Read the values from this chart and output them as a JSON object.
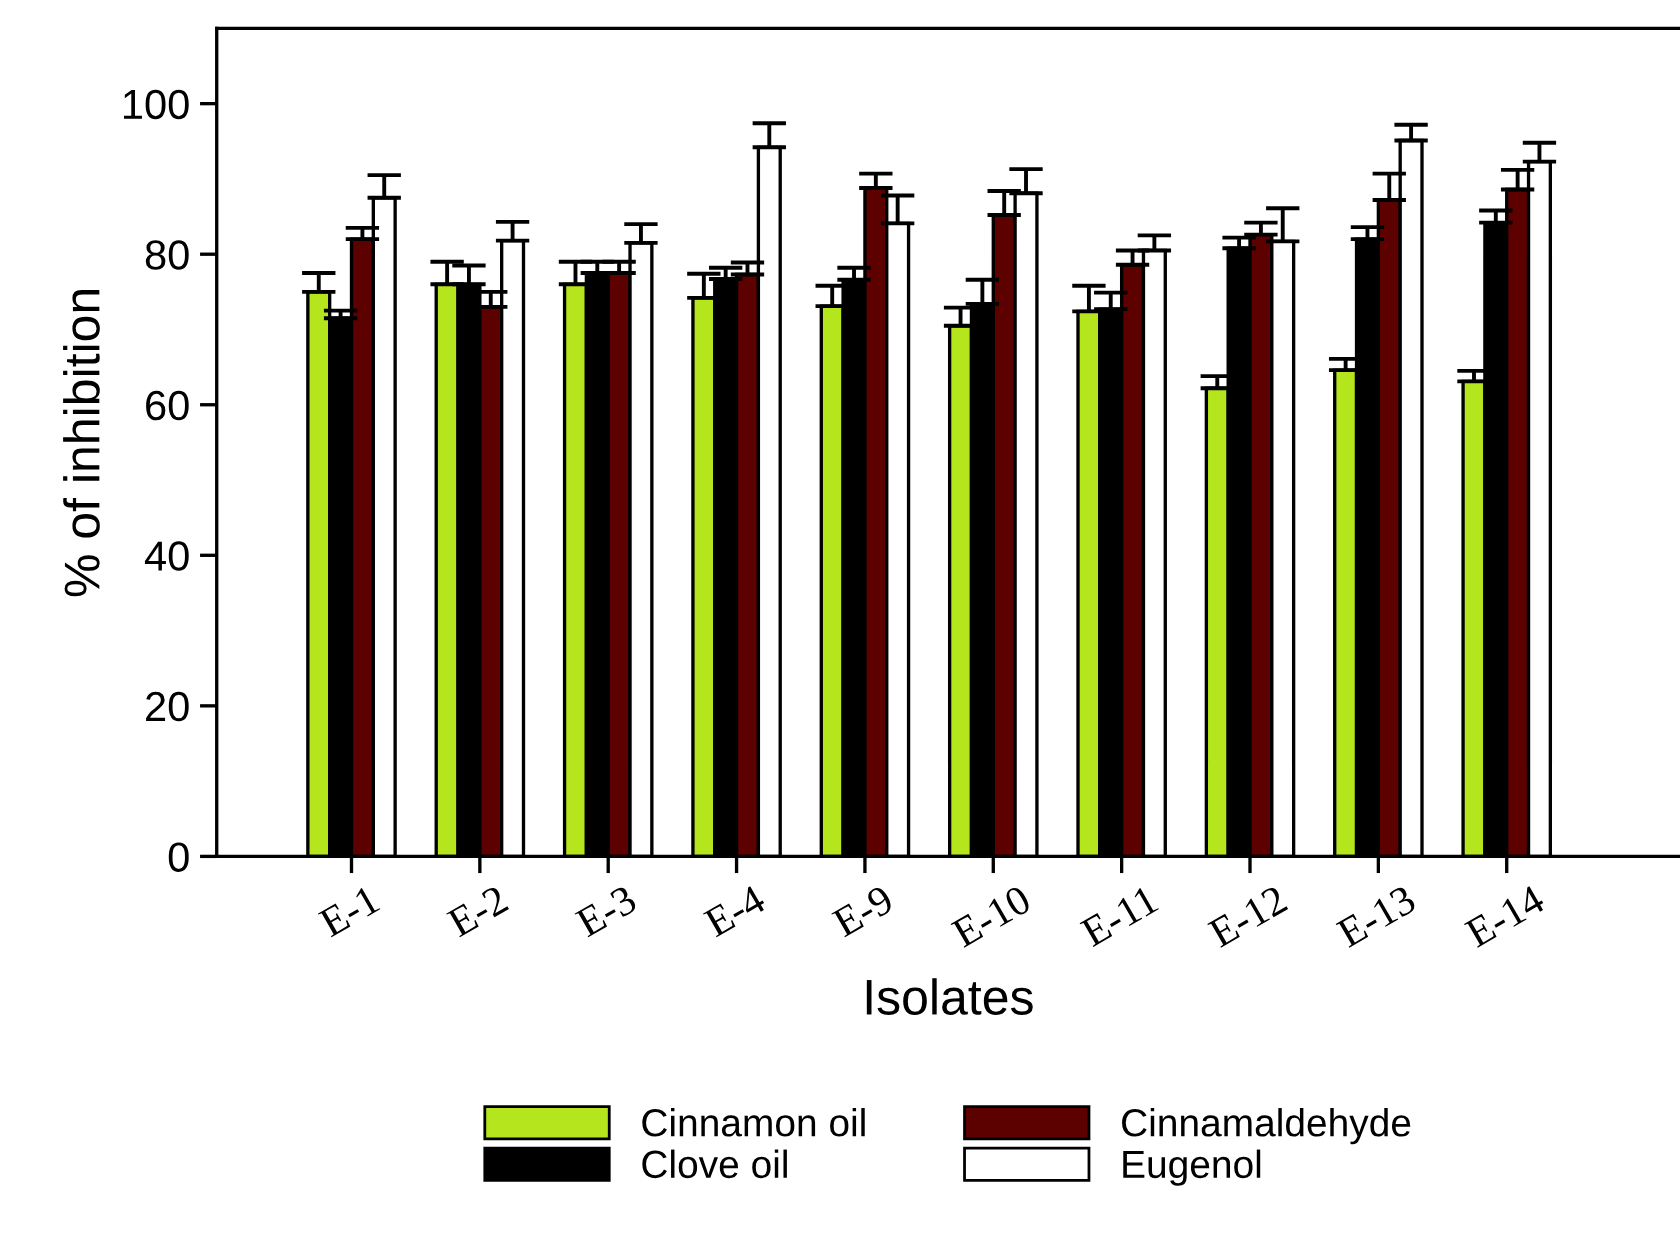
{
  "chart_data": {
    "type": "bar",
    "xlabel": "Isolates",
    "ylabel": "% of inhibition",
    "categories": [
      "E-1",
      "E-2",
      "E-3",
      "E-4",
      "E-9",
      "E-10",
      "E-11",
      "E-12",
      "E-13",
      "E-14"
    ],
    "series": [
      {
        "name": "Cinnamon oil",
        "color": "#b5e61d",
        "values": [
          75,
          76,
          76,
          74.2,
          73.1,
          70.5,
          72.4,
          62.2,
          64.6,
          63.1
        ],
        "errors": [
          [
            75,
            77.5
          ],
          [
            76,
            79
          ],
          [
            76,
            79
          ],
          [
            74.2,
            77.4
          ],
          [
            73.1,
            75.8
          ],
          [
            70.5,
            72.9
          ],
          [
            72.4,
            75.8
          ],
          [
            62.2,
            63.8
          ],
          [
            64.6,
            66.1
          ],
          [
            63.1,
            64.5
          ]
        ]
      },
      {
        "name": "Clove oil",
        "color": "#000000",
        "values": [
          71.5,
          76,
          77.5,
          76.7,
          76.6,
          73.4,
          72.7,
          80.8,
          82,
          84.2
        ],
        "errors": [
          [
            71.5,
            72.5
          ],
          [
            76,
            78.5
          ],
          [
            77.5,
            79
          ],
          [
            76.7,
            78.2
          ],
          [
            76.6,
            78.2
          ],
          [
            73.4,
            76.6
          ],
          [
            72.7,
            74.9
          ],
          [
            80.8,
            82.2
          ],
          [
            82,
            83.6
          ],
          [
            84.2,
            85.8
          ]
        ]
      },
      {
        "name": "Cinnamaldehyde",
        "color": "#5c0000",
        "values": [
          82,
          73,
          77.5,
          77.3,
          88.8,
          85.2,
          78.6,
          82.6,
          87.2,
          88.6
        ],
        "errors": [
          [
            82,
            83.5
          ],
          [
            73,
            75
          ],
          [
            77.5,
            79
          ],
          [
            77.3,
            78.9
          ],
          [
            88.8,
            90.7
          ],
          [
            85.2,
            88.4
          ],
          [
            78.6,
            80.5
          ],
          [
            82.6,
            84.2
          ],
          [
            87.2,
            90.7
          ],
          [
            88.6,
            91.2
          ]
        ]
      },
      {
        "name": "Eugenol",
        "color": "#ffffff",
        "values": [
          87.5,
          81.8,
          81.5,
          94.2,
          84.1,
          88.1,
          80.5,
          81.7,
          95.1,
          92.3
        ],
        "errors": [
          [
            87.5,
            90.5
          ],
          [
            81.8,
            84.3
          ],
          [
            81.5,
            84
          ],
          [
            94.2,
            97.4
          ],
          [
            84.1,
            87.8
          ],
          [
            88.1,
            91.3
          ],
          [
            80.5,
            82.5
          ],
          [
            81.7,
            86.1
          ],
          [
            95.1,
            97.2
          ],
          [
            92.3,
            94.8
          ]
        ]
      }
    ],
    "ylim": [
      0,
      110
    ],
    "yticks": [
      0,
      20,
      40,
      60,
      80,
      100
    ],
    "grid": false,
    "legend": "bottom"
  }
}
